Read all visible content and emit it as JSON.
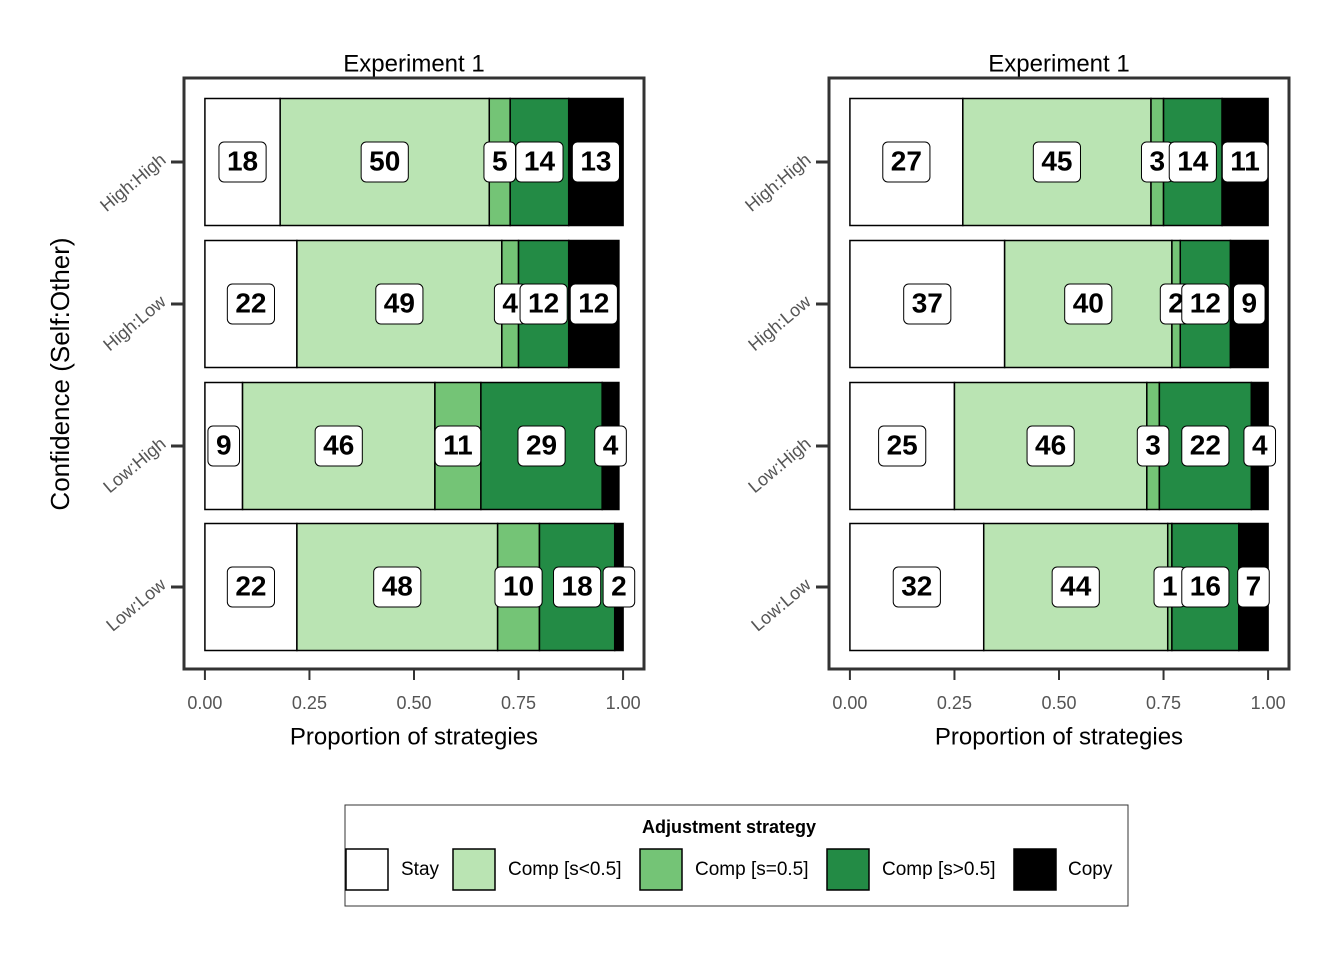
{
  "chart_data": [
    {
      "type": "bar",
      "orientation": "horizontal",
      "stacked": true,
      "title": "Experiment 1",
      "x_label": "Proportion of strategies",
      "y_label": "Confidence (Self:Other)",
      "legend_title": "Adjustment strategy",
      "categories": [
        "High:High",
        "High:Low",
        "Low:High",
        "Low:Low"
      ],
      "xlim": [
        -0.05,
        1.05
      ],
      "xticks": [
        {
          "value": 0,
          "label": "0.00"
        },
        0.25,
        {
          "value": 0.5,
          "label": "0.50"
        },
        0.75,
        {
          "value": 1,
          "label": "1.00"
        }
      ],
      "series": [
        {
          "name": "Stay",
          "color": "#ffffff",
          "values": [
            0.18,
            0.22,
            0.09,
            0.22
          ],
          "value_labels": [
            "18",
            "22",
            "9",
            "22"
          ]
        },
        {
          "name": "Comp [s<0.5]",
          "color": "#bae4b3",
          "values": [
            0.5,
            0.49,
            0.46,
            0.48
          ],
          "value_labels": [
            "50",
            "49",
            "46",
            "48"
          ]
        },
        {
          "name": "Comp [s=0.5]",
          "color": "#74c476",
          "values": [
            0.05,
            0.04,
            0.11,
            0.1
          ],
          "value_labels": [
            "5",
            "4",
            "11",
            "10"
          ]
        },
        {
          "name": "Comp [s>0.5]",
          "color": "#238b45",
          "values": [
            0.14,
            0.12,
            0.29,
            0.18
          ],
          "value_labels": [
            "14",
            "12",
            "29",
            "18"
          ]
        },
        {
          "name": "Copy",
          "color": "#000000",
          "values": [
            0.13,
            0.12,
            0.04,
            0.02
          ],
          "value_labels": [
            "13",
            "12",
            "4",
            "2"
          ]
        }
      ]
    },
    {
      "type": "bar",
      "orientation": "horizontal",
      "stacked": true,
      "title": "Experiment 1",
      "x_label": "Proportion of strategies",
      "categories": [
        "High:High",
        "High:Low",
        "Low:High",
        "Low:Low"
      ],
      "xlim": [
        -0.05,
        1.05
      ],
      "xticks": [
        {
          "value": 0,
          "label": "0.00"
        },
        0.25,
        {
          "value": 0.5,
          "label": "0.50"
        },
        0.75,
        {
          "value": 1,
          "label": "1.00"
        }
      ],
      "series": [
        {
          "name": "Stay",
          "color": "#ffffff",
          "values": [
            0.27,
            0.37,
            0.25,
            0.32
          ],
          "value_labels": [
            "27",
            "37",
            "25",
            "32"
          ]
        },
        {
          "name": "Comp [s<0.5]",
          "color": "#bae4b3",
          "values": [
            0.45,
            0.4,
            0.46,
            0.44
          ],
          "value_labels": [
            "45",
            "40",
            "46",
            "44"
          ]
        },
        {
          "name": "Comp [s=0.5]",
          "color": "#74c476",
          "values": [
            0.03,
            0.02,
            0.03,
            0.01
          ],
          "value_labels": [
            "3",
            "2",
            "3",
            "1"
          ]
        },
        {
          "name": "Comp [s>0.5]",
          "color": "#238b45",
          "values": [
            0.14,
            0.12,
            0.22,
            0.16
          ],
          "value_labels": [
            "14",
            "12",
            "22",
            "16"
          ]
        },
        {
          "name": "Copy",
          "color": "#000000",
          "values": [
            0.11,
            0.09,
            0.04,
            0.07
          ],
          "value_labels": [
            "11",
            "9",
            "4",
            "7"
          ]
        }
      ]
    }
  ]
}
